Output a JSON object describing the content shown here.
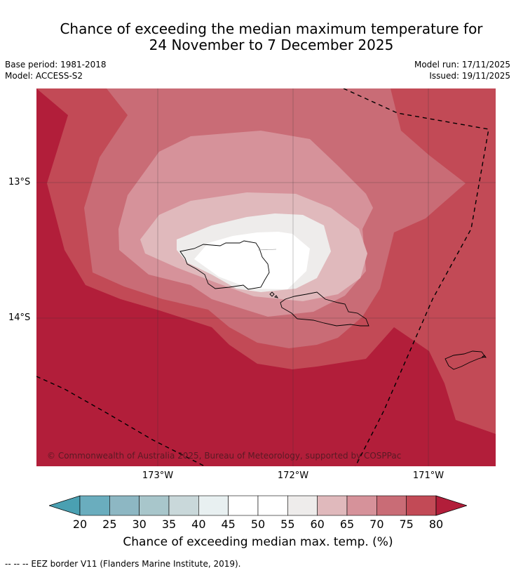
{
  "title": {
    "line1": "Chance of exceeding the median maximum temperature for",
    "line2": "24 November to 7 December 2025"
  },
  "meta": {
    "base_period": "Base period: 1981-2018",
    "model": "Model: ACCESS-S2",
    "model_run": "Model run: 17/11/2025",
    "issued": "Issued: 19/11/2025"
  },
  "axes": {
    "lat_labels": [
      "13°S",
      "14°S"
    ],
    "lon_labels": [
      "173°W",
      "172°W",
      "171°W"
    ]
  },
  "copyright": "© Commonwealth of Australia 2025, Bureau of Meteorology, supported by COSPPac",
  "colorbar": {
    "ticks": [
      "20",
      "25",
      "30",
      "35",
      "40",
      "45",
      "50",
      "55",
      "60",
      "65",
      "70",
      "75",
      "80"
    ],
    "colors": [
      "#4aa0b2",
      "#6aadbe",
      "#8db7c3",
      "#a8c6cb",
      "#c9d8da",
      "#e8f0f1",
      "#ffffff",
      "#ffffff",
      "#eeeceb",
      "#e0b9bc",
      "#d6929a",
      "#c96c76",
      "#c24a56",
      "#b21e3a"
    ],
    "title": "Chance of exceeding median max. temp. (%)"
  },
  "palette": {
    "c80": "#b21e3a",
    "c75": "#c24a56",
    "c70": "#c96c76",
    "c65": "#d6929a",
    "c60": "#e0b9bc",
    "c55": "#eeeceb",
    "c50": "#ffffff"
  },
  "footnote": "--  --  -- EEZ border V11 (Flanders Marine Institute, 2019)."
}
